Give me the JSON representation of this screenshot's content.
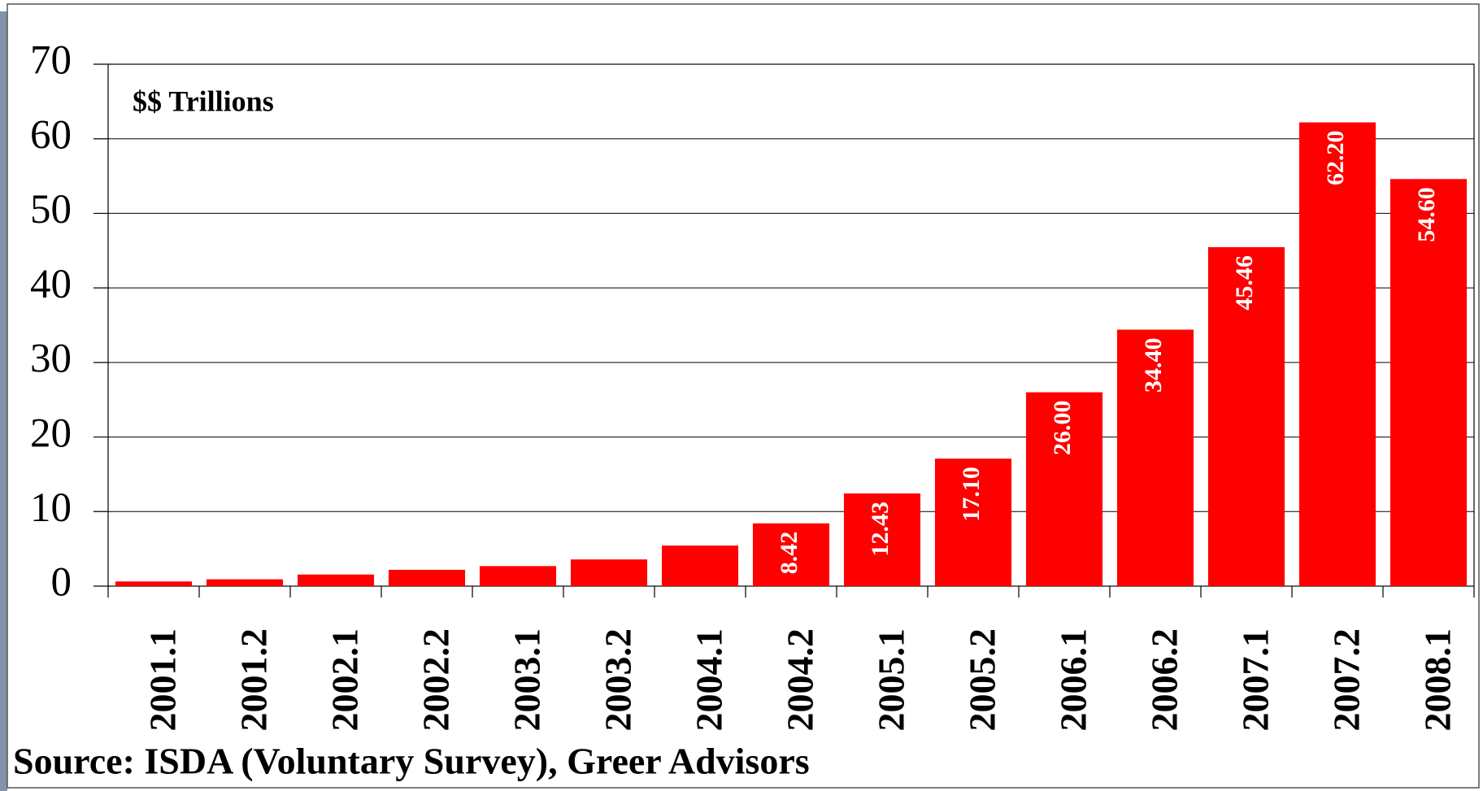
{
  "chart_data": {
    "type": "bar",
    "title": "$$ Trillions",
    "source": "Source: ISDA (Voluntary Survey), Greer Advisors",
    "categories": [
      "2001.1",
      "2001.2",
      "2002.1",
      "2002.2",
      "2003.1",
      "2003.2",
      "2004.1",
      "2004.2",
      "2005.1",
      "2005.2",
      "2006.1",
      "2006.2",
      "2007.1",
      "2007.2",
      "2008.1"
    ],
    "values": [
      0.63,
      0.92,
      1.56,
      2.19,
      2.69,
      3.58,
      5.44,
      8.42,
      12.43,
      17.1,
      26.0,
      34.4,
      45.46,
      62.2,
      54.6
    ],
    "value_labels": [
      null,
      null,
      null,
      null,
      null,
      null,
      null,
      "8.42",
      "12.43",
      "17.10",
      "26.00",
      "34.40",
      "45.46",
      "62.20",
      "54.60"
    ],
    "color": "#ff0000",
    "ylim": [
      0,
      70
    ],
    "yticks": [
      0,
      10,
      20,
      30,
      40,
      50,
      60,
      70
    ],
    "grid": true
  }
}
